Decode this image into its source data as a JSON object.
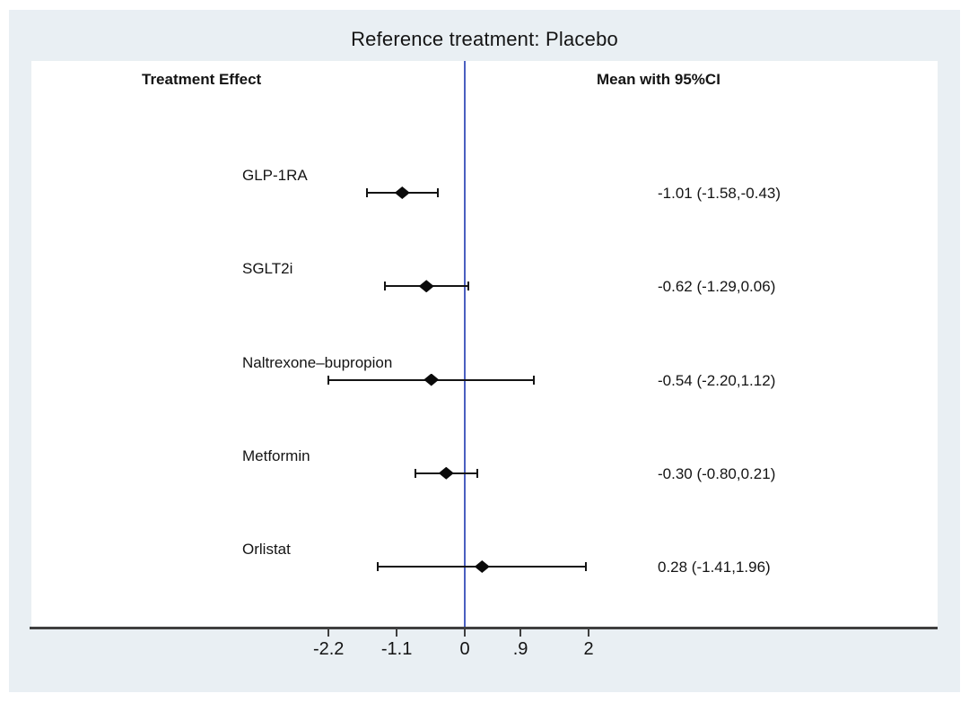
{
  "chart_data": {
    "type": "forest",
    "title": "Reference treatment: Placebo",
    "columns": {
      "left_header": "Treatment Effect",
      "right_header": "Mean with 95%CI"
    },
    "reference_line_value": 0,
    "rows": [
      {
        "label": "GLP-1RA",
        "mean": -1.01,
        "lo": -1.58,
        "hi": -0.43,
        "ci_text": "-1.01 (-1.58,-0.43)"
      },
      {
        "label": "SGLT2i",
        "mean": -0.62,
        "lo": -1.29,
        "hi": 0.06,
        "ci_text": "-0.62 (-1.29,0.06)"
      },
      {
        "label": "Naltrexone–bupropion",
        "mean": -0.54,
        "lo": -2.2,
        "hi": 1.12,
        "ci_text": "-0.54 (-2.20,1.12)"
      },
      {
        "label": "Metformin",
        "mean": -0.3,
        "lo": -0.8,
        "hi": 0.21,
        "ci_text": "-0.30 (-0.80,0.21)"
      },
      {
        "label": "Orlistat",
        "mean": 0.28,
        "lo": -1.41,
        "hi": 1.96,
        "ci_text": "0.28 (-1.41,1.96)"
      }
    ],
    "x_axis": {
      "tick_labels": [
        "-2.2",
        "-1.1",
        "0",
        ".9",
        "2"
      ],
      "tick_values": [
        -2.2,
        -1.1,
        0,
        0.9,
        2
      ]
    },
    "legend": null,
    "grid": false,
    "colors": {
      "reference_line": "#4a5fc0",
      "marker": "#0a0a0a",
      "ci_line": "#141414",
      "axis": "#3f3f3f",
      "figure_background": "#e9eff3",
      "panel_background": "#ffffff",
      "text": "#141414"
    }
  }
}
